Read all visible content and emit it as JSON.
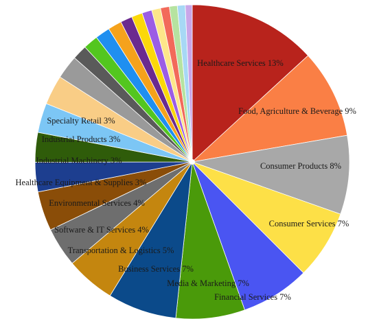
{
  "chart_data": {
    "type": "pie",
    "title": "",
    "unit": "%",
    "slices": [
      {
        "label": "Healthcare Services",
        "value": 13,
        "color": "#b8231c",
        "show_label": true,
        "text": "Healthcare Services 13%"
      },
      {
        "label": "Food, Agriculture & Beverage",
        "value": 9,
        "color": "#fa7f45",
        "show_label": true,
        "text": "Food, Agriculture & Beverage 9%"
      },
      {
        "label": "Consumer Products",
        "value": 8,
        "color": "#a8a8a8",
        "show_label": true,
        "text": "Consumer Products 8%"
      },
      {
        "label": "Consumer Services",
        "value": 7,
        "color": "#fde047",
        "show_label": true,
        "text": "Consumer Services 7%"
      },
      {
        "label": "Financial Services",
        "value": 7,
        "color": "#4a55f2",
        "show_label": true,
        "text": "Financial Services 7%"
      },
      {
        "label": "Media & Marketing",
        "value": 7,
        "color": "#4a9a0a",
        "show_label": true,
        "text": "Media & Marketing 7%"
      },
      {
        "label": "Business Services",
        "value": 7,
        "color": "#0b4a8a",
        "show_label": true,
        "text": "Business Services 7%"
      },
      {
        "label": "Transportation & Logistics",
        "value": 5,
        "color": "#c4860f",
        "show_label": true,
        "text": "Transportation & Logistics 5%"
      },
      {
        "label": "Software & IT Services",
        "value": 4,
        "color": "#6e6e6e",
        "show_label": true,
        "text": "Software & IT Services 4%"
      },
      {
        "label": "Environmental Services",
        "value": 4,
        "color": "#8a4d08",
        "show_label": true,
        "text": "Environmental Services 4%"
      },
      {
        "label": "Healthcare Equipment & Supplies",
        "value": 3,
        "color": "#1d3e8f",
        "show_label": true,
        "text": "Healthcare Equipment & Supplies 3%"
      },
      {
        "label": "Industrial Machinery",
        "value": 3,
        "color": "#2f5c0a",
        "show_label": true,
        "text": "Industrial Machinery 3%"
      },
      {
        "label": "Industrial Products",
        "value": 3,
        "color": "#7cc6f5",
        "show_label": true,
        "text": "Industrial Products 3%"
      },
      {
        "label": "Specialty Retail",
        "value": 3,
        "color": "#f9cd86",
        "show_label": true,
        "text": "Specialty Retail 3%"
      },
      {
        "label": "",
        "value": 2.4,
        "color": "#9a9a9a",
        "show_label": false,
        "text": ""
      },
      {
        "label": "",
        "value": 1.5,
        "color": "#5a5a5a",
        "show_label": false,
        "text": ""
      },
      {
        "label": "",
        "value": 1.5,
        "color": "#53c61f",
        "show_label": false,
        "text": ""
      },
      {
        "label": "",
        "value": 1.5,
        "color": "#1f8ff0",
        "show_label": false,
        "text": ""
      },
      {
        "label": "",
        "value": 1.4,
        "color": "#f5a21c",
        "show_label": false,
        "text": ""
      },
      {
        "label": "",
        "value": 1.2,
        "color": "#6b2a8f",
        "show_label": false,
        "text": ""
      },
      {
        "label": "",
        "value": 1.1,
        "color": "#fbd80a",
        "show_label": false,
        "text": ""
      },
      {
        "label": "",
        "value": 1.0,
        "color": "#9b5de5",
        "show_label": false,
        "text": ""
      },
      {
        "label": "",
        "value": 0.9,
        "color": "#fde68a",
        "show_label": false,
        "text": ""
      },
      {
        "label": "",
        "value": 0.9,
        "color": "#f26a5a",
        "show_label": false,
        "text": ""
      },
      {
        "label": "",
        "value": 0.8,
        "color": "#b6e3a0",
        "show_label": false,
        "text": ""
      },
      {
        "label": "",
        "value": 0.8,
        "color": "#a7d8f5",
        "show_label": false,
        "text": ""
      },
      {
        "label": "",
        "value": 0.7,
        "color": "#c9a6e8",
        "show_label": false,
        "text": ""
      }
    ],
    "legend": "none",
    "labels_inside": true
  }
}
